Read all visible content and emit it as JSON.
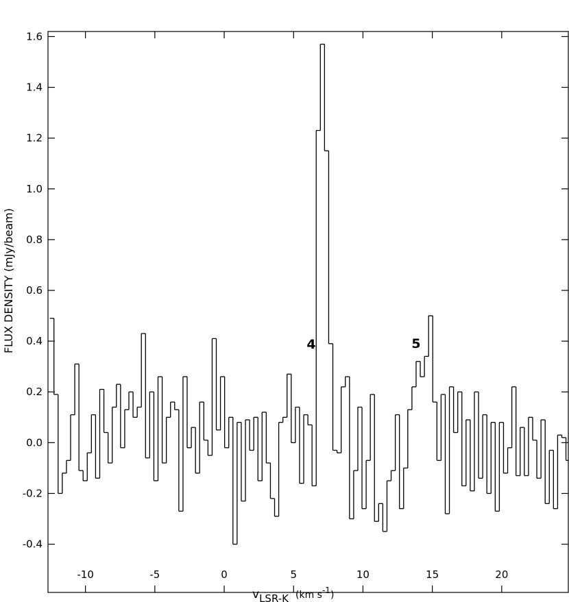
{
  "chart_data": {
    "type": "step",
    "ylabel": "FLUX DENSITY (mJy/beam)",
    "xlabel": {
      "main": "v",
      "sub": "LSR-K",
      "unit": "(km s",
      "sup": "-1",
      "close": ")"
    },
    "annotations": [
      "4",
      "5"
    ],
    "color": "#000000",
    "xlim": [
      -12.7,
      24.8
    ],
    "ylim": [
      -0.59,
      1.62
    ],
    "xticks": [
      -10,
      -5,
      0,
      5,
      10,
      15,
      20
    ],
    "yticks": [
      -0.4,
      -0.2,
      {
        "value": 0,
        "label": "0.0"
      },
      0.2,
      0.4,
      0.6,
      0.8,
      {
        "value": 1,
        "label": "1.0"
      },
      1.2,
      1.4,
      1.6
    ],
    "x": [
      -12.42,
      -12.12,
      -11.82,
      -11.52,
      -11.22,
      -10.92,
      -10.62,
      -10.32,
      -10.02,
      -9.72,
      -9.42,
      -9.12,
      -8.82,
      -8.52,
      -8.22,
      -7.92,
      -7.62,
      -7.32,
      -7.02,
      -6.72,
      -6.42,
      -6.12,
      -5.82,
      -5.52,
      -5.22,
      -4.92,
      -4.62,
      -4.32,
      -4.02,
      -3.72,
      -3.42,
      -3.12,
      -2.82,
      -2.52,
      -2.22,
      -1.92,
      -1.62,
      -1.32,
      -1.02,
      -0.72,
      -0.42,
      -0.12,
      0.18,
      0.48,
      0.78,
      1.08,
      1.38,
      1.68,
      1.98,
      2.28,
      2.58,
      2.88,
      3.18,
      3.48,
      3.78,
      4.08,
      4.38,
      4.68,
      4.98,
      5.28,
      5.58,
      5.88,
      6.18,
      6.48,
      6.78,
      7.08,
      7.38,
      7.68,
      7.98,
      8.28,
      8.58,
      8.88,
      9.18,
      9.48,
      9.78,
      10.08,
      10.38,
      10.68,
      10.98,
      11.28,
      11.58,
      11.88,
      12.18,
      12.48,
      12.78,
      13.08,
      13.38,
      13.68,
      13.98,
      14.28,
      14.58,
      14.88,
      15.18,
      15.48,
      15.78,
      16.08,
      16.38,
      16.68,
      16.98,
      17.28,
      17.58,
      17.88,
      18.18,
      18.48,
      18.78,
      19.08,
      19.38,
      19.68,
      19.98,
      20.28,
      20.58,
      20.88,
      21.18,
      21.48,
      21.78,
      22.08,
      22.38,
      22.68,
      22.98,
      23.28,
      23.58,
      23.88,
      24.18,
      24.48,
      24.78
    ],
    "values": [
      0.49,
      0.19,
      -0.2,
      -0.12,
      -0.07,
      0.11,
      0.31,
      -0.11,
      -0.15,
      -0.04,
      0.11,
      -0.14,
      0.21,
      0.04,
      -0.08,
      0.14,
      0.23,
      -0.02,
      0.13,
      0.2,
      0.1,
      0.14,
      0.43,
      -0.06,
      0.2,
      -0.15,
      0.26,
      -0.08,
      0.1,
      0.16,
      0.13,
      -0.27,
      0.26,
      -0.02,
      0.06,
      -0.12,
      0.16,
      0.01,
      -0.05,
      0.41,
      0.05,
      0.26,
      -0.02,
      0.1,
      -0.4,
      0.08,
      -0.23,
      0.09,
      -0.03,
      0.1,
      -0.15,
      0.12,
      -0.08,
      -0.22,
      -0.29,
      0.08,
      0.1,
      0.27,
      0.0,
      0.14,
      -0.16,
      0.11,
      0.07,
      -0.17,
      1.23,
      1.57,
      1.15,
      0.39,
      -0.03,
      -0.04,
      0.22,
      0.26,
      -0.3,
      -0.11,
      0.14,
      -0.26,
      -0.07,
      0.19,
      -0.31,
      -0.24,
      -0.35,
      -0.15,
      -0.11,
      0.11,
      -0.26,
      -0.1,
      0.13,
      0.22,
      0.32,
      0.26,
      0.34,
      0.5,
      0.16,
      -0.07,
      0.19,
      -0.28,
      0.22,
      0.04,
      0.2,
      -0.17,
      0.09,
      -0.19,
      0.2,
      -0.14,
      0.11,
      -0.2,
      0.08,
      -0.27,
      0.08,
      -0.12,
      -0.02,
      0.22,
      -0.13,
      0.06,
      -0.13,
      0.1,
      0.01,
      -0.14,
      0.09,
      -0.24,
      -0.03,
      -0.26,
      0.03,
      0.02,
      -0.07
    ]
  }
}
